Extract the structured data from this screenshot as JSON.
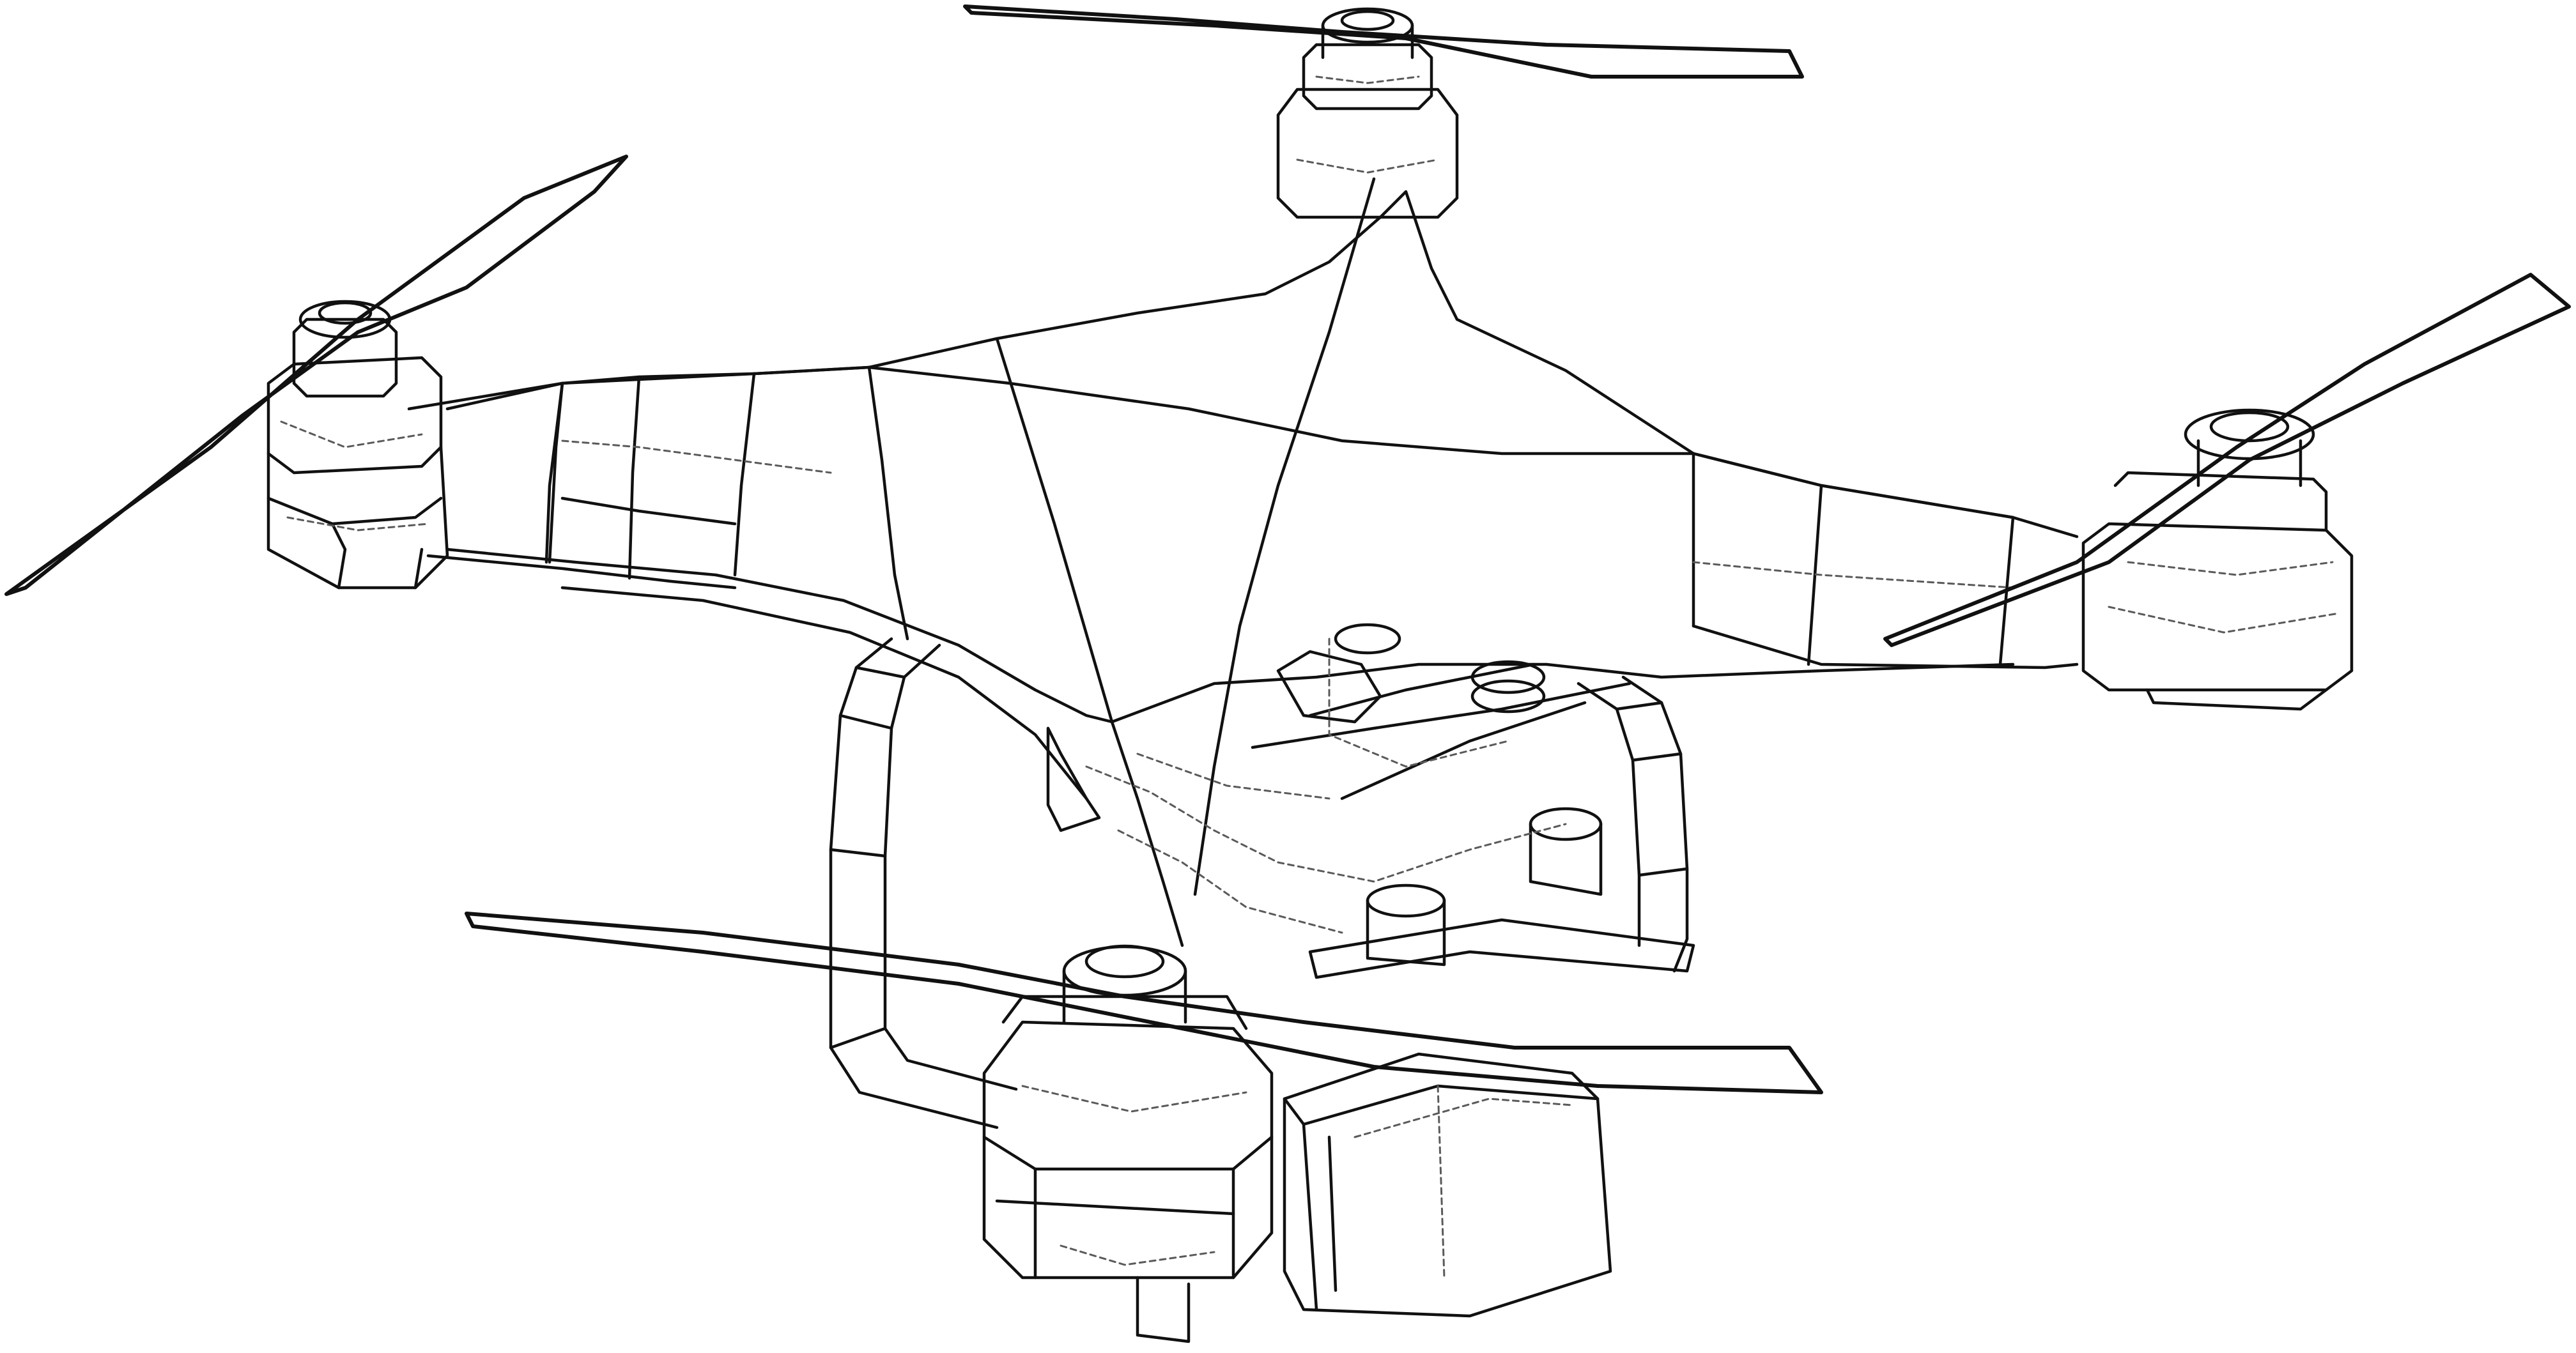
{
  "view": "wireframe",
  "colors": {
    "background": "#ffffff",
    "line": "#111111",
    "hidden_line": "#5a5a5a"
  }
}
